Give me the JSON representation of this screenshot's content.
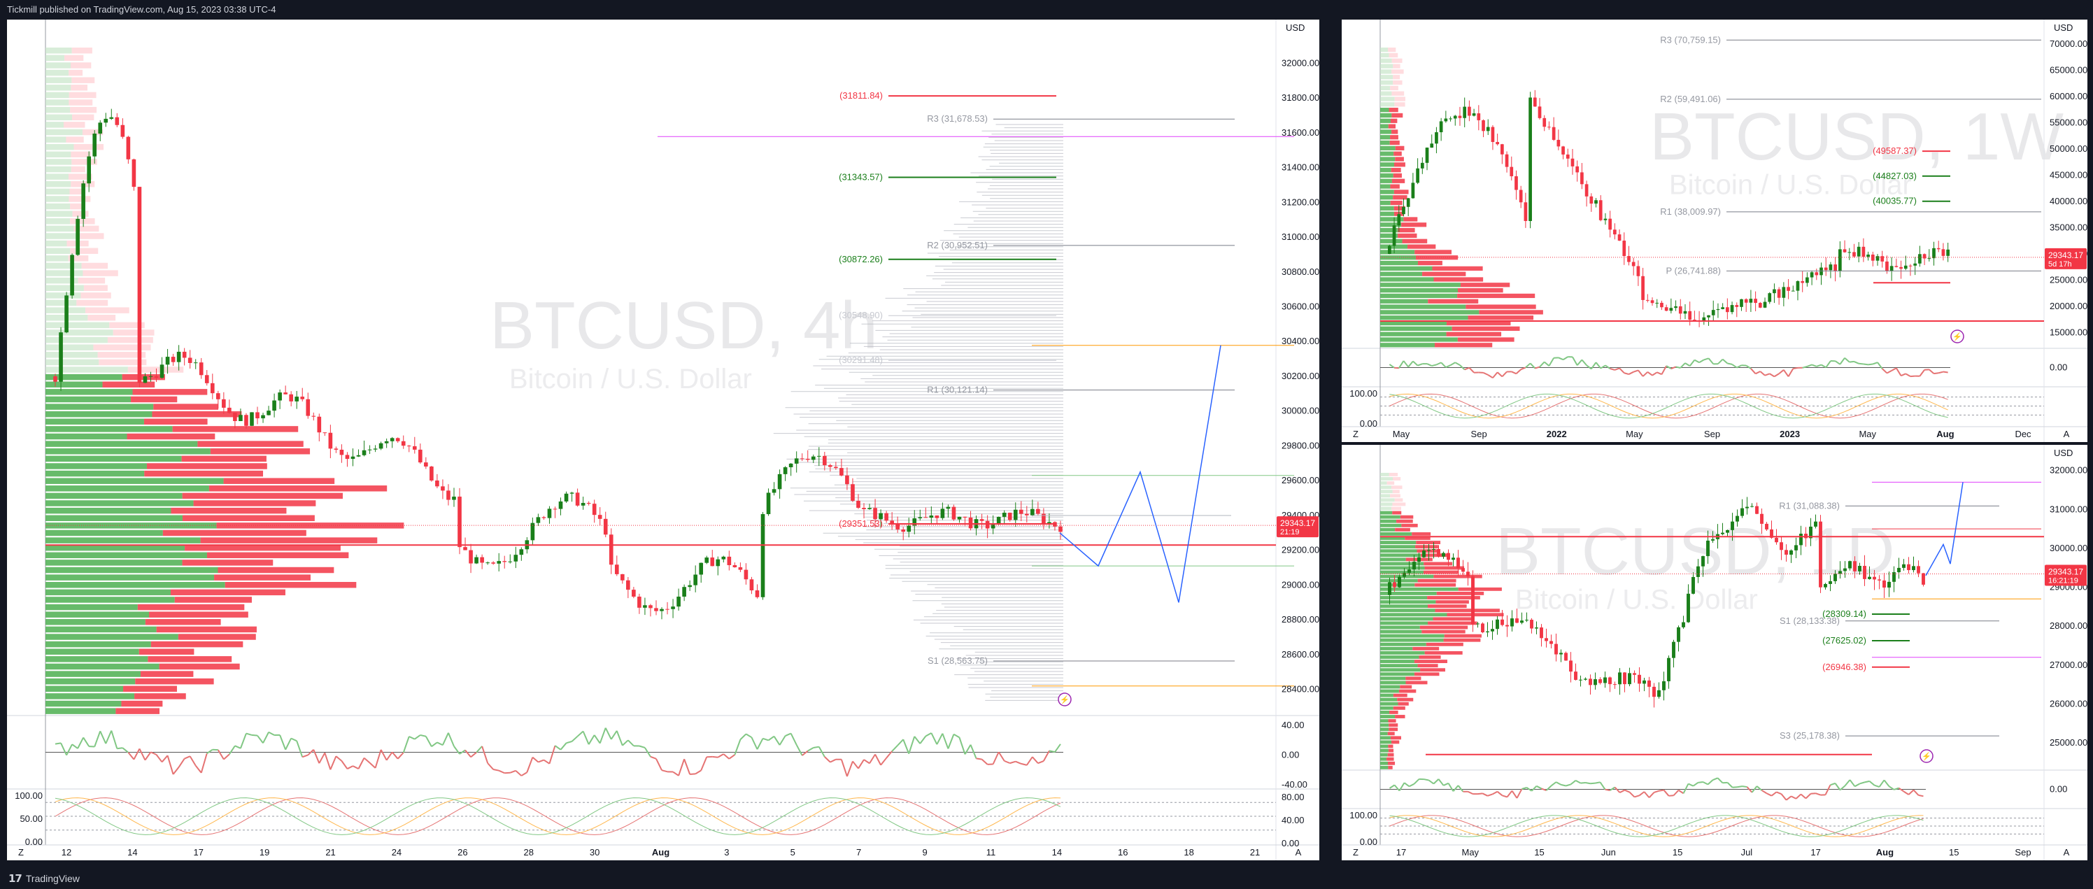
{
  "header": {
    "publisher_line": "Tickmill published on TradingView.com, Aug 15, 2023 03:38 UTC-4"
  },
  "footer": {
    "brand": "TradingView"
  },
  "colors": {
    "bull": "#089981",
    "bull_bright": "#1a7f1a",
    "bear": "#f23645",
    "profile_green": "#4caf50",
    "profile_red": "#f23645",
    "pivot_gray": "#787b86",
    "projection_blue": "#2962ff",
    "orange": "#ff9800",
    "magenta": "#e040fb",
    "price_tag": "#f23645"
  },
  "icons": [
    "lightning-icon",
    "auto-scale-icon",
    "zoom-z-icon"
  ],
  "chart_data": [
    {
      "type": "candlestick",
      "symbol": "BTCUSD",
      "timeframe": "4h",
      "watermark_title": "BTCUSD, 4h",
      "watermark_subtitle": "Bitcoin / U.S. Dollar",
      "currency": "USD",
      "yticks": [
        "32000.00",
        "31800.00",
        "31600.00",
        "31400.00",
        "31200.00",
        "31000.00",
        "30800.00",
        "30600.00",
        "30400.00",
        "30200.00",
        "30000.00",
        "29800.00",
        "29600.00",
        "29400.00",
        "29200.00",
        "29000.00",
        "28800.00",
        "28600.00",
        "28400.00"
      ],
      "xticks": [
        "12",
        "14",
        "17",
        "19",
        "21",
        "24",
        "26",
        "28",
        "30",
        "Aug",
        "3",
        "5",
        "7",
        "9",
        "11",
        "14",
        "16",
        "18",
        "21"
      ],
      "ylim": [
        28250,
        32170
      ],
      "last_price": "29343.17",
      "countdown": "21:19",
      "levels": [
        {
          "label": "(31811.84)",
          "value": 31811.84,
          "kind": "red"
        },
        {
          "label": "R3 (31,678.53)",
          "value": 31678.53,
          "kind": "pivot"
        },
        {
          "label": "(31343.57)",
          "value": 31343.57,
          "kind": "green"
        },
        {
          "label": "(30872.26)",
          "value": 30872.26,
          "kind": "green"
        },
        {
          "label": "R2 (30,952.51)",
          "value": 30952.51,
          "kind": "pivot"
        },
        {
          "label": "(30548.90)",
          "value": 30548.9,
          "kind": "faint"
        },
        {
          "label": "(30291.48)",
          "value": 30291.48,
          "kind": "faint"
        },
        {
          "label": "R1 (30,121.14)",
          "value": 30121.14,
          "kind": "pivot"
        },
        {
          "label": "(29351.53)",
          "value": 29351.53,
          "kind": "red"
        },
        {
          "label": "S1 (28,563.75)",
          "value": 28563.75,
          "kind": "pivot"
        }
      ],
      "osc1_ticks": [
        "40.00",
        "0.00",
        "-40.00"
      ],
      "osc2_ticks": [
        "100.00",
        "50.00",
        "0.00"
      ],
      "osc2_right_ticks": [
        "80.00",
        "40.00",
        "0.00"
      ]
    },
    {
      "type": "candlestick",
      "symbol": "BTCUSD",
      "timeframe": "1W",
      "watermark_title": "BTCUSD, 1W",
      "watermark_subtitle": "Bitcoin / U.S. Dollar",
      "currency": "USD",
      "yticks": [
        "70000.00",
        "65000.00",
        "60000.00",
        "55000.00",
        "50000.00",
        "45000.00",
        "40000.00",
        "35000.00",
        "30000.00",
        "25000.00",
        "20000.00",
        "15000.00"
      ],
      "xticks": [
        "May",
        "Sep",
        "2022",
        "May",
        "Sep",
        "2023",
        "May",
        "Aug",
        "Dec"
      ],
      "ylim": [
        12000,
        72000
      ],
      "last_price": "29343.17",
      "countdown": "5d 17h",
      "levels": [
        {
          "label": "R3 (70,759.15)",
          "value": 70759.15,
          "kind": "pivot"
        },
        {
          "label": "R2 (59,491.06)",
          "value": 59491.06,
          "kind": "pivot"
        },
        {
          "label": "(49587.37)",
          "value": 49587.37,
          "kind": "red"
        },
        {
          "label": "(44827.03)",
          "value": 44827.03,
          "kind": "green"
        },
        {
          "label": "(40035.77)",
          "value": 40035.77,
          "kind": "green"
        },
        {
          "label": "R1 (38,009.97)",
          "value": 38009.97,
          "kind": "pivot"
        },
        {
          "label": "P (26,741.88)",
          "value": 26741.88,
          "kind": "pivot"
        }
      ],
      "osc1_ticks": [
        "0.00"
      ],
      "osc2_ticks": [
        "100.00",
        "0.00"
      ]
    },
    {
      "type": "candlestick",
      "symbol": "BTCUSD",
      "timeframe": "1D",
      "watermark_title": "BTCUSD, 1D",
      "watermark_subtitle": "Bitcoin / U.S. Dollar",
      "currency": "USD",
      "yticks": [
        "32000.00",
        "31000.00",
        "30000.00",
        "29000.00",
        "28000.00",
        "27000.00",
        "26000.00",
        "25000.00"
      ],
      "xticks": [
        "17",
        "May",
        "15",
        "Jun",
        "15",
        "Jul",
        "17",
        "Aug",
        "15",
        "Sep"
      ],
      "ylim": [
        24300,
        32300
      ],
      "last_price": "29343.17",
      "countdown": "16:21:19",
      "levels": [
        {
          "label": "R1 (31,088.38)",
          "value": 31088.38,
          "kind": "pivot"
        },
        {
          "label": "(28309.14)",
          "value": 28309.14,
          "kind": "green"
        },
        {
          "label": "S1 (28,133.38)",
          "value": 28133.38,
          "kind": "pivot"
        },
        {
          "label": "(27625.02)",
          "value": 27625.02,
          "kind": "green"
        },
        {
          "label": "(26946.38)",
          "value": 26946.38,
          "kind": "red"
        },
        {
          "label": "S3 (25,178.38)",
          "value": 25178.38,
          "kind": "pivot"
        }
      ],
      "osc1_ticks": [
        "0.00"
      ],
      "osc2_ticks": [
        "100.00",
        "0.00"
      ]
    }
  ]
}
